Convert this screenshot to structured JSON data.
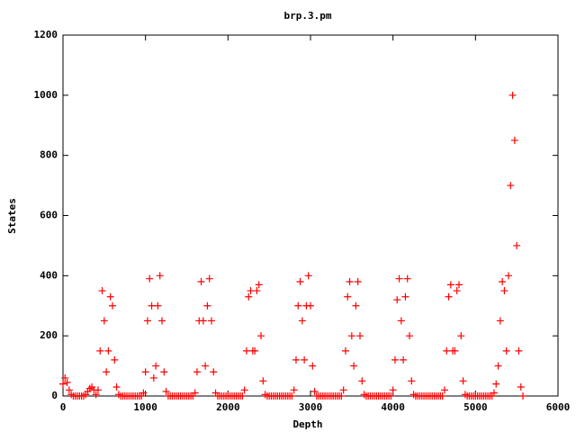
{
  "chart_data": {
    "type": "scatter",
    "title": "brp.3.pm",
    "x_label": "Depth",
    "y_label": "States",
    "xlim": [
      0,
      6000
    ],
    "xticks": [
      0,
      1000,
      2000,
      3000,
      4000,
      5000,
      6000
    ],
    "ylim": [
      0,
      1200
    ],
    "yticks": [
      0,
      200,
      400,
      600,
      800,
      1000,
      1200
    ],
    "color": "#ff0000",
    "marker": "plus",
    "x": [
      0,
      25,
      50,
      75,
      100,
      125,
      150,
      175,
      200,
      225,
      250,
      275,
      300,
      325,
      350,
      375,
      400,
      425,
      450,
      475,
      500,
      525,
      550,
      575,
      600,
      625,
      650,
      675,
      700,
      725,
      750,
      775,
      800,
      825,
      850,
      875,
      900,
      925,
      950,
      975,
      1000,
      1025,
      1050,
      1075,
      1100,
      1125,
      1150,
      1175,
      1200,
      1225,
      1250,
      1275,
      1300,
      1325,
      1350,
      1375,
      1400,
      1425,
      1450,
      1475,
      1500,
      1525,
      1550,
      1575,
      1600,
      1625,
      1650,
      1675,
      1700,
      1725,
      1750,
      1775,
      1800,
      1825,
      1850,
      1875,
      1900,
      1925,
      1950,
      1975,
      2000,
      2025,
      2050,
      2075,
      2100,
      2125,
      2150,
      2175,
      2200,
      2225,
      2250,
      2275,
      2300,
      2325,
      2350,
      2375,
      2400,
      2425,
      2450,
      2475,
      2500,
      2525,
      2550,
      2575,
      2600,
      2625,
      2650,
      2675,
      2700,
      2725,
      2750,
      2775,
      2800,
      2825,
      2850,
      2875,
      2900,
      2925,
      2950,
      2975,
      3000,
      3025,
      3050,
      3075,
      3100,
      3125,
      3150,
      3175,
      3200,
      3225,
      3250,
      3275,
      3300,
      3325,
      3350,
      3375,
      3400,
      3425,
      3450,
      3475,
      3500,
      3525,
      3550,
      3575,
      3600,
      3625,
      3650,
      3675,
      3700,
      3725,
      3750,
      3775,
      3800,
      3825,
      3850,
      3875,
      3900,
      3925,
      3950,
      3975,
      4000,
      4025,
      4050,
      4075,
      4100,
      4125,
      4150,
      4175,
      4200,
      4225,
      4250,
      4275,
      4300,
      4325,
      4350,
      4375,
      4400,
      4425,
      4450,
      4475,
      4500,
      4525,
      4550,
      4575,
      4600,
      4625,
      4650,
      4675,
      4700,
      4725,
      4750,
      4775,
      4800,
      4825,
      4850,
      4875,
      4900,
      4925,
      4950,
      4975,
      5000,
      5025,
      5050,
      5075,
      5100,
      5125,
      5150,
      5175,
      5200,
      5225,
      5250,
      5275,
      5300,
      5325,
      5350,
      5375,
      5400,
      5425,
      5450,
      5475,
      5500,
      5525,
      5550,
      5575
    ],
    "values": [
      40,
      60,
      45,
      20,
      5,
      0,
      0,
      0,
      0,
      0,
      0,
      5,
      15,
      25,
      30,
      20,
      5,
      20,
      150,
      350,
      250,
      80,
      150,
      330,
      300,
      120,
      30,
      5,
      0,
      0,
      0,
      0,
      0,
      0,
      0,
      0,
      0,
      0,
      0,
      10,
      80,
      250,
      390,
      300,
      60,
      100,
      300,
      400,
      250,
      80,
      15,
      0,
      0,
      0,
      0,
      0,
      0,
      0,
      0,
      0,
      0,
      0,
      0,
      0,
      10,
      80,
      250,
      380,
      250,
      100,
      300,
      390,
      250,
      80,
      10,
      0,
      0,
      0,
      0,
      0,
      0,
      0,
      0,
      0,
      0,
      0,
      0,
      0,
      20,
      150,
      330,
      350,
      150,
      150,
      350,
      370,
      200,
      50,
      5,
      0,
      0,
      0,
      0,
      0,
      0,
      0,
      0,
      0,
      0,
      0,
      0,
      0,
      20,
      120,
      300,
      380,
      250,
      120,
      300,
      400,
      300,
      100,
      15,
      0,
      0,
      0,
      0,
      0,
      0,
      0,
      0,
      0,
      0,
      0,
      0,
      0,
      20,
      150,
      330,
      380,
      200,
      100,
      300,
      380,
      200,
      50,
      5,
      0,
      0,
      0,
      0,
      0,
      0,
      0,
      0,
      0,
      0,
      0,
      0,
      0,
      20,
      120,
      320,
      390,
      250,
      120,
      330,
      390,
      200,
      50,
      5,
      0,
      0,
      0,
      0,
      0,
      0,
      0,
      0,
      0,
      0,
      0,
      0,
      0,
      0,
      20,
      150,
      330,
      370,
      150,
      150,
      350,
      370,
      200,
      50,
      5,
      0,
      0,
      0,
      0,
      0,
      0,
      0,
      0,
      0,
      0,
      0,
      0,
      0,
      10,
      40,
      100,
      250,
      380,
      350,
      150,
      400,
      700,
      1000,
      850,
      500,
      150,
      30,
      0
    ]
  }
}
